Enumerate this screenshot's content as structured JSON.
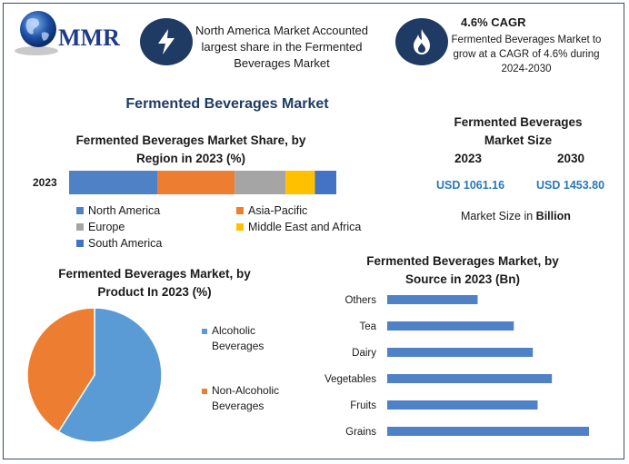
{
  "logo": {
    "text": "MMR"
  },
  "highlight_left": {
    "icon": "lightning-icon",
    "text": "North America Market Accounted largest share in the Fermented Beverages Market"
  },
  "highlight_right": {
    "icon": "flame-icon",
    "title": "4.6% CAGR",
    "text": "Fermented Beverages Market to grow at a CAGR of 4.6% during 2024-2030"
  },
  "main_title": "Fermented Beverages Market",
  "market_size": {
    "title": "Fermented Beverages Market Size",
    "year1": "2023",
    "year2": "2030",
    "value1": "USD 1061.16",
    "value2": "USD 1453.80",
    "note_prefix": "Market Size in ",
    "note_bold": "Billion"
  },
  "chart_data": [
    {
      "type": "bar",
      "orientation": "horizontal-stacked",
      "title": "Fermented Beverages Market Share, by Region in 2023 (%)",
      "categories": [
        "2023"
      ],
      "series": [
        {
          "name": "North America",
          "values": [
            33
          ],
          "color": "#4f81c7"
        },
        {
          "name": "Asia-Pacific",
          "values": [
            29
          ],
          "color": "#ed7d31"
        },
        {
          "name": "Europe",
          "values": [
            19
          ],
          "color": "#a5a5a5"
        },
        {
          "name": "Middle East and Africa",
          "values": [
            11
          ],
          "color": "#ffc000"
        },
        {
          "name": "South America",
          "values": [
            8
          ],
          "color": "#4472c4"
        }
      ],
      "legend_position": "bottom"
    },
    {
      "type": "pie",
      "title": "Fermented Beverages Market, by Product In 2023 (%)",
      "labels": [
        "Alcoholic Beverages",
        "Non-Alcoholic Beverages"
      ],
      "values": [
        59,
        41
      ],
      "colors": [
        "#5b9bd5",
        "#ed7d31"
      ],
      "legend_position": "right"
    },
    {
      "type": "bar",
      "orientation": "horizontal",
      "title": "Fermented Beverages Market, by Source in 2023 (Bn)",
      "categories": [
        "Others",
        "Tea",
        "Dairy",
        "Vegetables",
        "Fruits",
        "Grains"
      ],
      "values": [
        95,
        133,
        153,
        173,
        158,
        212
      ],
      "color": "#4f81c7"
    }
  ]
}
